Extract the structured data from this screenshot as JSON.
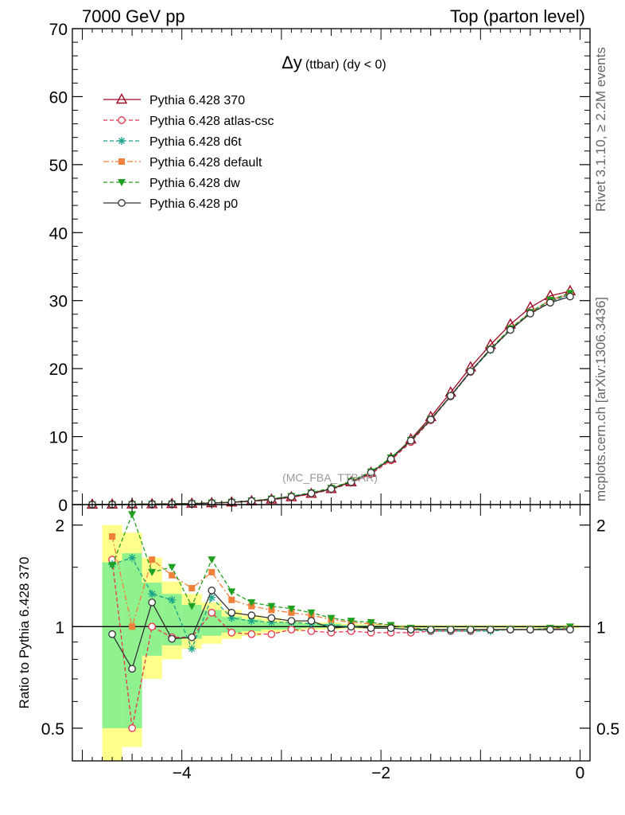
{
  "header": {
    "left": "7000 GeV pp",
    "right": "Top (parton level)"
  },
  "side_labels": {
    "upper": "Rivet 3.1.10, ≥ 2.2M events",
    "lower": "mcplots.cern.ch [arXiv:1306.3436]"
  },
  "chart_data": [
    {
      "type": "line",
      "panel": "main",
      "title_symbol": "Δy",
      "title_rest": "(ttbar) (dy < 0)",
      "watermark": "(MC_FBA_TTBAR)",
      "xlim": [
        -5.1,
        0.1
      ],
      "ylim": [
        0,
        70
      ],
      "ytick_labels": [
        "0",
        "10",
        "20",
        "30",
        "40",
        "50",
        "60",
        "70"
      ],
      "grid": false,
      "legend_position": "top-left",
      "x": [
        -4.9,
        -4.7,
        -4.5,
        -4.3,
        -4.1,
        -3.9,
        -3.7,
        -3.5,
        -3.3,
        -3.1,
        -2.9,
        -2.7,
        -2.5,
        -2.3,
        -2.1,
        -1.9,
        -1.7,
        -1.5,
        -1.3,
        -1.1,
        -0.9,
        -0.7,
        -0.5,
        -0.3,
        -0.1
      ],
      "series": [
        {
          "name": "Pythia 6.428 370",
          "color": "#a00b24",
          "dash": "solid",
          "marker": "triangle-open",
          "values": [
            0.01,
            0.02,
            0.04,
            0.07,
            0.1,
            0.15,
            0.22,
            0.33,
            0.5,
            0.75,
            1.1,
            1.6,
            2.3,
            3.3,
            4.7,
            6.8,
            9.6,
            12.9,
            16.5,
            20.2,
            23.5,
            26.5,
            29.0,
            30.7,
            31.4
          ]
        },
        {
          "name": "Pythia 6.428 atlas-csc",
          "color": "#e8334d",
          "dash": "dashed",
          "marker": "circle-open",
          "values": [
            0.01,
            0.02,
            0.03,
            0.07,
            0.1,
            0.15,
            0.21,
            0.31,
            0.47,
            0.71,
            1.05,
            1.55,
            2.2,
            3.2,
            4.5,
            6.5,
            9.2,
            12.4,
            15.9,
            19.5,
            22.8,
            25.7,
            28.2,
            30.0,
            30.9
          ]
        },
        {
          "name": "Pythia 6.428 d6t",
          "color": "#19a38a",
          "dash": "dashed",
          "marker": "star",
          "values": [
            0.01,
            0.03,
            0.05,
            0.09,
            0.12,
            0.17,
            0.26,
            0.36,
            0.55,
            0.82,
            1.2,
            1.7,
            2.4,
            3.4,
            4.8,
            6.8,
            9.4,
            12.5,
            15.9,
            19.5,
            22.7,
            25.7,
            28.1,
            29.8,
            30.9
          ]
        },
        {
          "name": "Pythia 6.428 default",
          "color": "#f0813a",
          "dash": "dashdot",
          "marker": "square",
          "values": [
            0.01,
            0.03,
            0.05,
            0.1,
            0.13,
            0.18,
            0.26,
            0.37,
            0.56,
            0.83,
            1.2,
            1.7,
            2.4,
            3.4,
            4.8,
            6.8,
            9.4,
            12.6,
            16.0,
            19.6,
            22.9,
            25.9,
            28.3,
            30.1,
            31.1
          ]
        },
        {
          "name": "Pythia 6.428 dw",
          "color": "#20a020",
          "dash": "dashed",
          "marker": "triangle-down",
          "values": [
            0.01,
            0.03,
            0.07,
            0.09,
            0.13,
            0.18,
            0.28,
            0.38,
            0.58,
            0.85,
            1.25,
            1.75,
            2.45,
            3.45,
            4.85,
            6.9,
            9.5,
            12.6,
            16.0,
            19.6,
            22.9,
            25.9,
            28.3,
            30.1,
            31.1
          ]
        },
        {
          "name": "Pythia 6.428 p0",
          "color": "#333333",
          "dash": "solid",
          "marker": "circle-open",
          "values": [
            0.01,
            0.02,
            0.03,
            0.07,
            0.09,
            0.14,
            0.22,
            0.34,
            0.52,
            0.77,
            1.15,
            1.65,
            2.3,
            3.3,
            4.7,
            6.7,
            9.4,
            12.5,
            16.0,
            19.6,
            22.8,
            25.7,
            28.1,
            29.7,
            30.6
          ]
        }
      ]
    },
    {
      "type": "line",
      "panel": "ratio",
      "ylabel": "Ratio to Pythia 6.428 370",
      "xlim": [
        -5.1,
        0.1
      ],
      "ylim": [
        0.4,
        2.3
      ],
      "yscale": "log",
      "reference": 1,
      "xtick_labels": [
        {
          "v": -4,
          "t": "−4"
        },
        {
          "v": -2,
          "t": "−2"
        },
        {
          "v": 0,
          "t": "0"
        }
      ],
      "ytick_labels": [
        {
          "v": 0.5,
          "t": "0.5"
        },
        {
          "v": 1,
          "t": "1"
        },
        {
          "v": 2,
          "t": "2"
        }
      ],
      "uncertainty_bands": [
        {
          "x0": -4.8,
          "x1": -4.6,
          "inner": [
            0.5,
            1.55
          ],
          "outer": [
            0.32,
            2.0
          ]
        },
        {
          "x0": -4.6,
          "x1": -4.4,
          "inner": [
            0.5,
            1.65
          ],
          "outer": [
            0.44,
            1.9
          ]
        },
        {
          "x0": -4.4,
          "x1": -4.2,
          "inner": [
            0.82,
            1.35
          ],
          "outer": [
            0.7,
            1.6
          ]
        },
        {
          "x0": -4.2,
          "x1": -4.0,
          "inner": [
            0.88,
            1.25
          ],
          "outer": [
            0.8,
            1.36
          ]
        },
        {
          "x0": -4.0,
          "x1": -3.8,
          "inner": [
            0.92,
            1.16
          ],
          "outer": [
            0.86,
            1.25
          ]
        },
        {
          "x0": -3.8,
          "x1": -3.6,
          "inner": [
            0.94,
            1.12
          ],
          "outer": [
            0.89,
            1.18
          ]
        },
        {
          "x0": -3.6,
          "x1": -3.4,
          "inner": [
            0.96,
            1.07
          ],
          "outer": [
            0.92,
            1.12
          ]
        },
        {
          "x0": -3.4,
          "x1": -3.2,
          "inner": [
            0.97,
            1.05
          ],
          "outer": [
            0.94,
            1.08
          ]
        },
        {
          "x0": -3.2,
          "x1": -3.0,
          "inner": [
            0.98,
            1.03
          ],
          "outer": [
            0.96,
            1.06
          ]
        },
        {
          "x0": -3.0,
          "x1": -2.8,
          "inner": [
            0.98,
            1.03
          ],
          "outer": [
            0.97,
            1.04
          ]
        },
        {
          "x0": -2.8,
          "x1": -2.6,
          "inner": [
            0.99,
            1.02
          ],
          "outer": [
            0.98,
            1.03
          ]
        },
        {
          "x0": -2.6,
          "x1": -2.4,
          "inner": [
            0.99,
            1.02
          ],
          "outer": [
            0.98,
            1.03
          ]
        },
        {
          "x0": -2.4,
          "x1": -2.2,
          "inner": [
            0.99,
            1.01
          ],
          "outer": [
            0.985,
            1.02
          ]
        },
        {
          "x0": -2.2,
          "x1": -2.0,
          "inner": [
            0.99,
            1.01
          ],
          "outer": [
            0.985,
            1.015
          ]
        },
        {
          "x0": -2.0,
          "x1": 0.0,
          "inner": [
            0.995,
            1.005
          ],
          "outer": [
            0.99,
            1.01
          ]
        }
      ],
      "x": [
        -4.7,
        -4.5,
        -4.3,
        -4.1,
        -3.9,
        -3.7,
        -3.5,
        -3.3,
        -3.1,
        -2.9,
        -2.7,
        -2.5,
        -2.3,
        -2.1,
        -1.9,
        -1.7,
        -1.5,
        -1.3,
        -1.1,
        -0.9,
        -0.7,
        -0.5,
        -0.3,
        -0.1
      ],
      "series": [
        {
          "name": "Pythia 6.428 atlas-csc",
          "color": "#e8334d",
          "dash": "dashed",
          "marker": "circle-open",
          "values": [
            1.58,
            0.5,
            1.0,
            0.93,
            0.93,
            1.1,
            0.96,
            0.95,
            0.95,
            0.98,
            0.97,
            0.96,
            0.97,
            0.96,
            0.96,
            0.96,
            0.97,
            0.97,
            0.97,
            0.98,
            0.98,
            0.98,
            0.98,
            0.99
          ]
        },
        {
          "name": "Pythia 6.428 d6t",
          "color": "#19a38a",
          "dash": "dashed",
          "marker": "star",
          "values": [
            1.53,
            1.6,
            1.25,
            1.2,
            0.86,
            1.22,
            1.06,
            1.04,
            1.03,
            1.03,
            1.02,
            1.01,
            1.0,
            0.99,
            0.99,
            0.98,
            0.97,
            0.97,
            0.97,
            0.97,
            0.98,
            0.98,
            0.98,
            0.99
          ]
        },
        {
          "name": "Pythia 6.428 default",
          "color": "#f0813a",
          "dash": "dashdot",
          "marker": "square",
          "values": [
            1.85,
            1.0,
            1.58,
            1.42,
            1.3,
            1.45,
            1.2,
            1.15,
            1.12,
            1.1,
            1.08,
            1.05,
            1.03,
            1.02,
            1.01,
            0.99,
            0.98,
            0.98,
            0.98,
            0.98,
            0.98,
            0.98,
            0.99,
            0.99
          ]
        },
        {
          "name": "Pythia 6.428 dw",
          "color": "#20a020",
          "dash": "dashed",
          "marker": "triangle-down",
          "values": [
            1.52,
            2.15,
            1.45,
            1.5,
            1.15,
            1.58,
            1.27,
            1.18,
            1.15,
            1.13,
            1.1,
            1.06,
            1.04,
            1.03,
            1.01,
            0.99,
            0.98,
            0.98,
            0.98,
            0.98,
            0.98,
            0.98,
            0.99,
            1.0
          ]
        },
        {
          "name": "Pythia 6.428 p0",
          "color": "#333333",
          "dash": "solid",
          "marker": "circle-open",
          "values": [
            0.95,
            0.75,
            1.18,
            0.92,
            0.93,
            1.28,
            1.1,
            1.08,
            1.06,
            1.04,
            1.04,
            0.99,
            1.0,
            0.99,
            0.99,
            0.98,
            0.98,
            0.98,
            0.98,
            0.98,
            0.98,
            0.98,
            0.98,
            0.98
          ]
        }
      ]
    }
  ]
}
